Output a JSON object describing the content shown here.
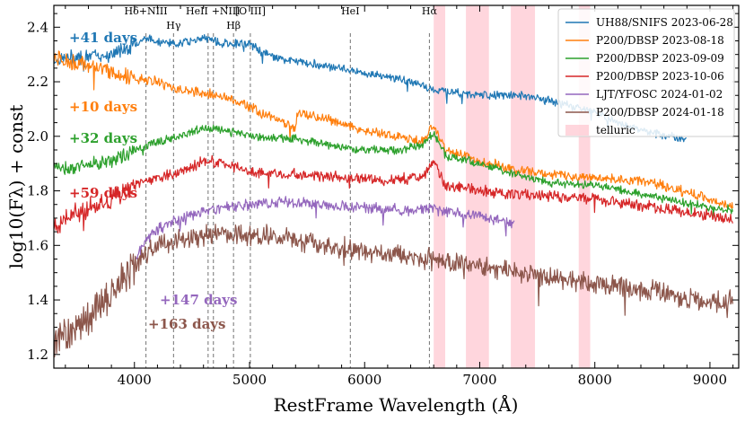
{
  "chart_data": {
    "type": "line",
    "title": "",
    "xlabel": "RestFrame Wavelength (Å)",
    "ylabel": "log10(Fλ) + const",
    "xlim": [
      3300,
      9250
    ],
    "ylim": [
      1.15,
      2.48
    ],
    "xticks": [
      4000,
      5000,
      6000,
      7000,
      8000,
      9000
    ],
    "yticks": [
      1.2,
      1.4,
      1.6,
      1.8,
      2.0,
      2.2,
      2.4
    ],
    "xtick_labels": [
      "4000",
      "5000",
      "6000",
      "7000",
      "8000",
      "9000"
    ],
    "ytick_labels": [
      "1.2",
      "1.4",
      "1.6",
      "1.8",
      "2.0",
      "2.2",
      "2.4"
    ],
    "legend_position": "top-right",
    "series": [
      {
        "name": "UH88/SNIFS 2023-06-28",
        "legend": "UH88/SNIFS 2023-06-28",
        "color": "#1f77b4",
        "epoch": "+41 days",
        "noise": 0.012,
        "x": [
          3300,
          3500,
          3800,
          3950,
          4000,
          4100,
          4200,
          4350,
          4500,
          4600,
          4700,
          4750,
          4800,
          5000,
          5100,
          5300,
          5500,
          5800,
          6000,
          6200,
          6400,
          6600,
          6800,
          7000,
          7200,
          7400,
          7600,
          7800,
          8000,
          8200,
          8500,
          8800
        ],
        "values": [
          2.28,
          2.29,
          2.3,
          2.33,
          2.34,
          2.36,
          2.35,
          2.34,
          2.35,
          2.36,
          2.35,
          2.34,
          2.34,
          2.34,
          2.31,
          2.28,
          2.27,
          2.25,
          2.23,
          2.22,
          2.2,
          2.17,
          2.16,
          2.15,
          2.15,
          2.15,
          2.13,
          2.11,
          2.09,
          2.05,
          2.01,
          1.99
        ]
      },
      {
        "name": "P200/DBSP 2023-08-18",
        "legend": "P200/DBSP   2023-08-18",
        "color": "#ff7f0e",
        "epoch": "+10 days",
        "noise": 0.014,
        "x": [
          3300,
          3500,
          3800,
          4000,
          4200,
          4400,
          4600,
          4800,
          5000,
          5200,
          5400,
          5420,
          5700,
          6000,
          6300,
          6500,
          6600,
          6700,
          7000,
          7300,
          7600,
          8000,
          8500,
          9000,
          9200
        ],
        "values": [
          2.29,
          2.27,
          2.24,
          2.21,
          2.2,
          2.17,
          2.16,
          2.14,
          2.11,
          2.07,
          2.03,
          2.09,
          2.06,
          2.02,
          2.0,
          1.98,
          2.04,
          1.95,
          1.91,
          1.88,
          1.86,
          1.85,
          1.83,
          1.77,
          1.74
        ]
      },
      {
        "name": "P200/DBSP 2023-09-09",
        "legend": "P200/DBSP   2023-09-09",
        "color": "#2ca02c",
        "epoch": "+32 days",
        "noise": 0.012,
        "x": [
          3300,
          3500,
          3800,
          4000,
          4200,
          4400,
          4600,
          4800,
          5000,
          5400,
          5800,
          6000,
          6300,
          6500,
          6600,
          6700,
          7000,
          7300,
          7600,
          8000,
          8500,
          9000,
          9200
        ],
        "values": [
          1.88,
          1.89,
          1.91,
          1.95,
          1.98,
          2.0,
          2.03,
          2.02,
          2.0,
          1.99,
          1.96,
          1.95,
          1.95,
          1.97,
          2.01,
          1.93,
          1.9,
          1.86,
          1.83,
          1.82,
          1.78,
          1.74,
          1.73
        ]
      },
      {
        "name": "P200/DBSP 2023-10-06",
        "legend": "P200/DBSP   2023-10-06",
        "color": "#d62728",
        "epoch": "+59 days",
        "noise": 0.016,
        "x": [
          3300,
          3500,
          3800,
          4000,
          4200,
          4400,
          4600,
          4800,
          5000,
          5400,
          5800,
          6200,
          6500,
          6600,
          6700,
          7000,
          7300,
          7600,
          8000,
          8500,
          9000,
          9200
        ],
        "values": [
          1.67,
          1.72,
          1.77,
          1.82,
          1.85,
          1.87,
          1.91,
          1.9,
          1.87,
          1.86,
          1.85,
          1.84,
          1.85,
          1.91,
          1.82,
          1.8,
          1.79,
          1.78,
          1.77,
          1.74,
          1.71,
          1.69
        ]
      },
      {
        "name": "LJT/YFOSC 2024-01-02",
        "legend": "LJT/YFOSC   2024-01-02",
        "color": "#9467bd",
        "epoch": "+147 days",
        "noise": 0.016,
        "x": [
          4000,
          4100,
          4200,
          4400,
          4600,
          4800,
          5000,
          5300,
          5600,
          6000,
          6300,
          6600,
          6800,
          7000,
          7200,
          7300
        ],
        "values": [
          1.54,
          1.62,
          1.66,
          1.7,
          1.72,
          1.74,
          1.75,
          1.76,
          1.75,
          1.74,
          1.73,
          1.73,
          1.72,
          1.71,
          1.69,
          1.68
        ]
      },
      {
        "name": "P200/DBSP 2024-01-18",
        "legend": "P200/DBSP   2024-01-18",
        "color": "#8c564b",
        "epoch": "+163 days",
        "noise": 0.03,
        "x": [
          3300,
          3500,
          3700,
          3900,
          4000,
          4100,
          4200,
          4400,
          4600,
          4800,
          5000,
          5300,
          5600,
          6000,
          6400,
          6700,
          7000,
          7500,
          8000,
          8500,
          9000,
          9200
        ],
        "values": [
          1.25,
          1.3,
          1.38,
          1.48,
          1.52,
          1.57,
          1.6,
          1.62,
          1.64,
          1.64,
          1.64,
          1.63,
          1.6,
          1.58,
          1.56,
          1.54,
          1.52,
          1.49,
          1.46,
          1.43,
          1.39,
          1.4
        ]
      }
    ],
    "line_marks": [
      {
        "label": "Hδ+NIII",
        "x": 4100
      },
      {
        "label": "Hγ",
        "x": 4340
      },
      {
        "label": "HeII",
        "x": 4640
      },
      {
        "label": "+NIII",
        "x": 4686
      },
      {
        "label": "Hβ",
        "x": 4861
      },
      {
        "label": "[O III]",
        "x": 5007
      },
      {
        "label": "HeI",
        "x": 5876
      },
      {
        "label": "Hα",
        "x": 6563
      }
    ],
    "telluric_label": "telluric",
    "telluric_bands": [
      [
        6600,
        6700
      ],
      [
        6880,
        7080
      ],
      [
        7270,
        7480
      ],
      [
        7860,
        7960
      ]
    ],
    "telluric_color": "#ffc0cb"
  }
}
